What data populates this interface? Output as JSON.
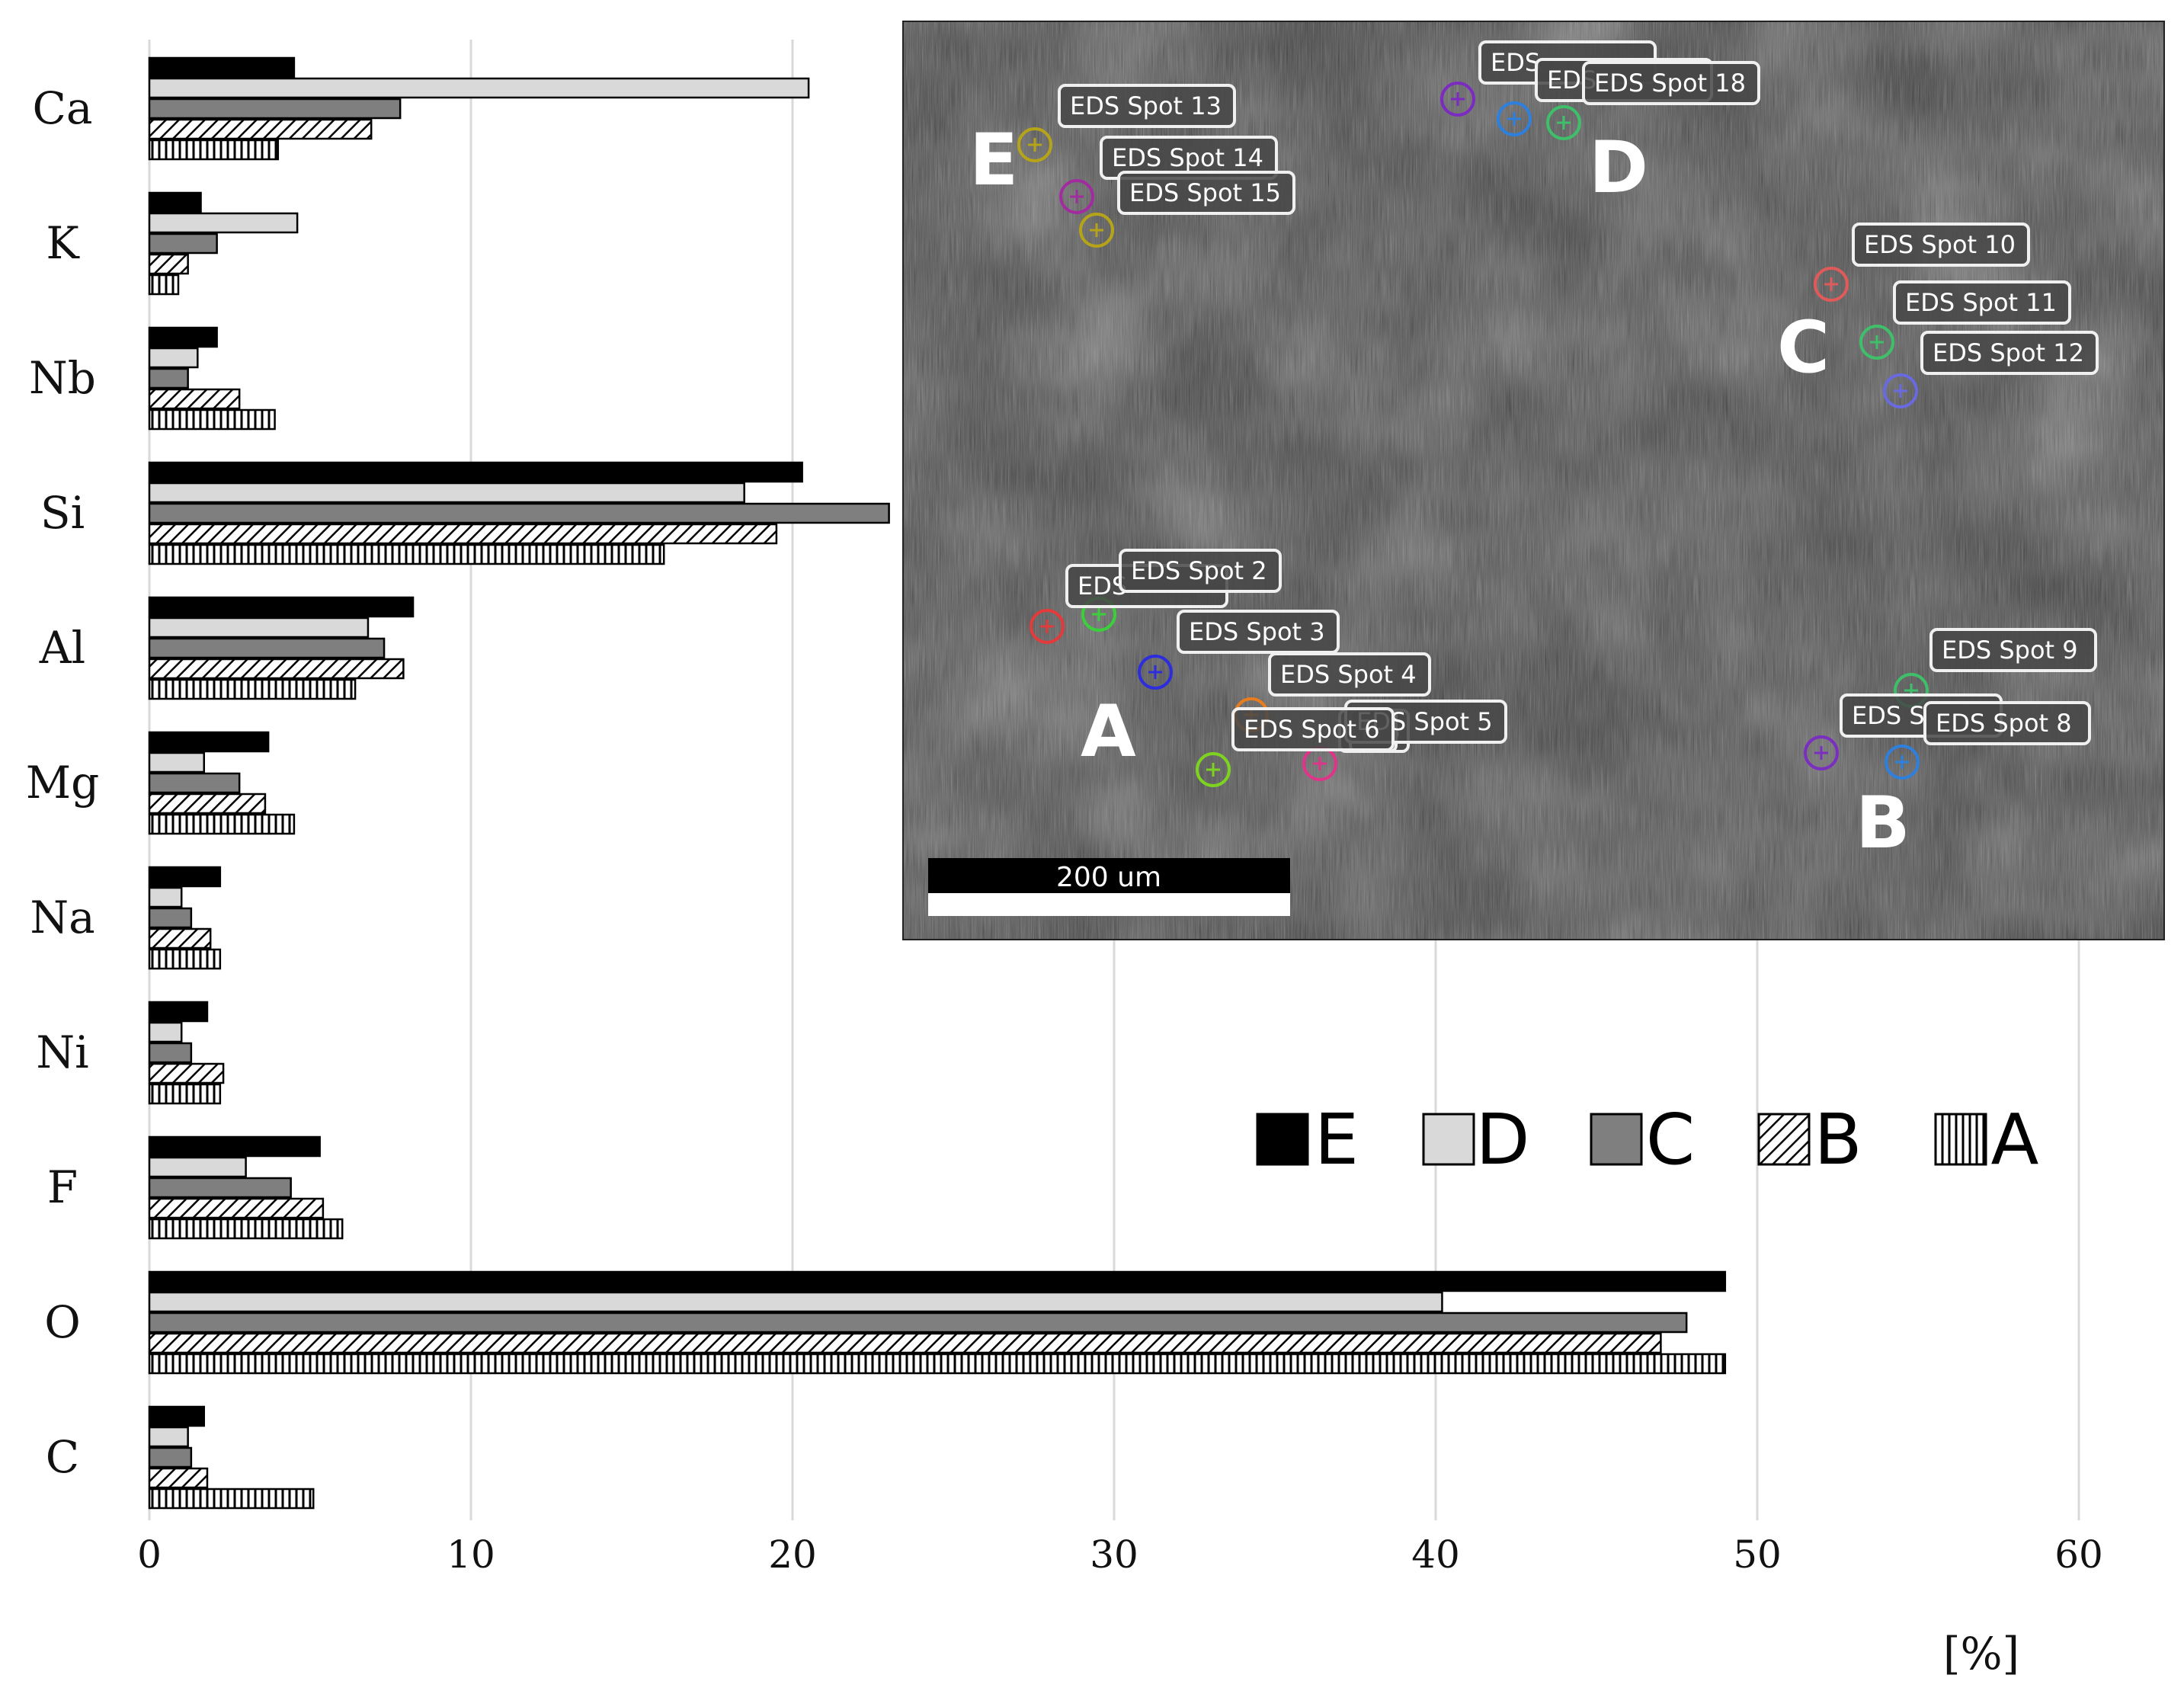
{
  "chart_data": {
    "type": "bar",
    "orientation": "horizontal",
    "categories": [
      "Ca",
      "K",
      "Nb",
      "Si",
      "Al",
      "Mg",
      "Na",
      "Ni",
      "F",
      "O",
      "C"
    ],
    "series": [
      {
        "name": "E",
        "values": [
          4.5,
          1.6,
          2.1,
          20.3,
          8.2,
          3.7,
          2.2,
          1.8,
          5.3,
          49.0,
          1.7
        ]
      },
      {
        "name": "D",
        "values": [
          20.5,
          4.6,
          1.5,
          18.5,
          6.8,
          1.7,
          1.0,
          1.0,
          3.0,
          40.2,
          1.2
        ]
      },
      {
        "name": "C",
        "values": [
          7.8,
          2.1,
          1.2,
          23.0,
          7.3,
          2.8,
          1.3,
          1.3,
          4.4,
          47.8,
          1.3
        ]
      },
      {
        "name": "B",
        "values": [
          6.9,
          1.2,
          2.8,
          19.5,
          7.9,
          3.6,
          1.9,
          2.3,
          5.4,
          47.0,
          1.8
        ]
      },
      {
        "name": "A",
        "values": [
          4.0,
          0.9,
          3.9,
          16.0,
          6.4,
          4.5,
          2.2,
          2.2,
          6.0,
          49.0,
          5.1
        ]
      }
    ],
    "series_styles": {
      "E": {
        "fill": "#000000",
        "pattern": "solid"
      },
      "D": {
        "fill": "#d9d9d9",
        "pattern": "solid"
      },
      "C": {
        "fill": "#7f7f7f",
        "pattern": "solid"
      },
      "B": {
        "fill": "#ffffff",
        "pattern": "diagonal-hatch"
      },
      "A": {
        "fill": "#ffffff",
        "pattern": "vertical-hatch"
      }
    },
    "xlim": [
      0,
      60
    ],
    "xticks": [
      0,
      10,
      20,
      30,
      40,
      50,
      60
    ],
    "xticks_labels": [
      "0",
      "10",
      "20",
      "30",
      "40",
      "50",
      "60"
    ],
    "xlabel": "[%]",
    "ylabel": "",
    "title": "",
    "grid": "vertical",
    "legend_position": "right-middle",
    "legend_order": [
      "E",
      "D",
      "C",
      "B",
      "A"
    ]
  },
  "inset_image": {
    "kind": "SEM micrograph",
    "scale_bar_label": "200 um",
    "regions": [
      "A",
      "B",
      "C",
      "D",
      "E"
    ],
    "spot_labels": [
      "EDS Spot 2",
      "EDS Spot 3",
      "EDS Spot 4",
      "EDS Spot 5",
      "EDS Spot 6",
      "EDS Spot 8",
      "EDS Spot 9",
      "EDS Spot 10",
      "EDS Spot 11",
      "EDS Spot 12",
      "EDS Spot 13",
      "EDS Spot 14",
      "EDS Spot 15",
      "EDS Spot 18"
    ],
    "partial_labels": [
      "EDS",
      "EDS",
      "EDS",
      "EDS S",
      "EDS",
      "E"
    ],
    "marker_colors": [
      "#e23b3b",
      "#3ccf3c",
      "#2d2ddd",
      "#e87d1e",
      "#e0338a",
      "#7ed321",
      "#7b2bbf",
      "#2f7fdd",
      "#3fbf6a",
      "#e05a5a",
      "#6a6ae0",
      "#b5a31a",
      "#a02ca0",
      "#7a2fbf",
      "#2f6fbf"
    ]
  }
}
